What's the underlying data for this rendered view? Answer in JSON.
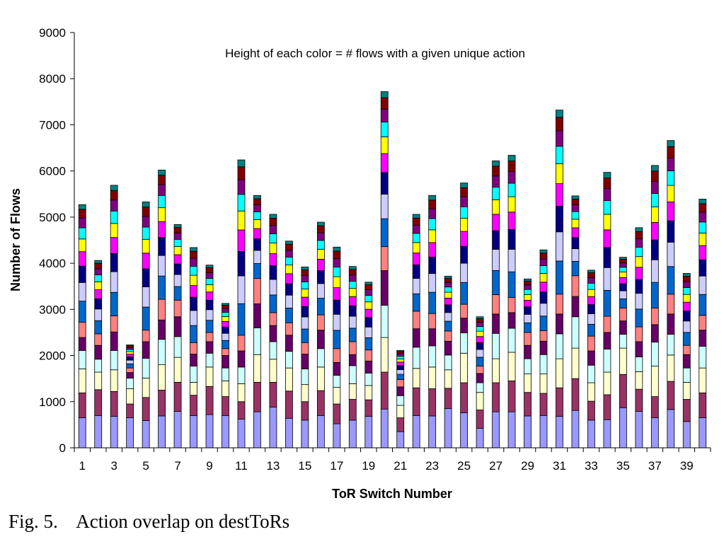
{
  "chart_data": {
    "type": "bar",
    "stacked": true,
    "annotation": "Height of each color = # flows with a given unique action",
    "xlabel": "ToR Switch Number",
    "ylabel": "Number of Flows",
    "ylim": [
      0,
      9000
    ],
    "yticks": [
      0,
      1000,
      2000,
      3000,
      4000,
      5000,
      6000,
      7000,
      8000,
      9000
    ],
    "xtick_labels": [
      "1",
      "3",
      "5",
      "7",
      "9",
      "11",
      "13",
      "15",
      "17",
      "19",
      "21",
      "23",
      "25",
      "27",
      "29",
      "31",
      "33",
      "35",
      "37",
      "39"
    ],
    "categories": [
      1,
      2,
      3,
      4,
      5,
      6,
      7,
      8,
      9,
      10,
      11,
      12,
      13,
      14,
      15,
      16,
      17,
      18,
      19,
      20,
      21,
      22,
      23,
      24,
      25,
      26,
      27,
      28,
      29,
      30,
      31,
      32,
      33,
      34,
      35,
      36,
      37,
      38,
      39,
      40
    ],
    "totals": [
      5270,
      4060,
      5690,
      2230,
      5330,
      6020,
      4840,
      4340,
      3960,
      3130,
      6240,
      5470,
      5060,
      4480,
      3920,
      4890,
      4350,
      3930,
      3590,
      7720,
      2110,
      5060,
      5470,
      3720,
      5740,
      2840,
      6220,
      6340,
      3660,
      4290,
      7320,
      5460,
      3850,
      5970,
      4130,
      4770,
      6120,
      6660,
      3780,
      5390
    ],
    "bottom_segments": [
      [
        650,
        540,
        520,
        400,
        280,
        330
      ],
      [
        700,
        560,
        380,
        280,
        300,
        250
      ],
      [
        680,
        540,
        470,
        420,
        400,
        350
      ],
      [
        650,
        300,
        330,
        230,
        120,
        100
      ],
      [
        590,
        500,
        420,
        430,
        360,
        250
      ],
      [
        690,
        560,
        550,
        550,
        420,
        450
      ],
      [
        790,
        630,
        540,
        450,
        430,
        360
      ],
      [
        700,
        440,
        280,
        350,
        260,
        250
      ],
      [
        720,
        610,
        420,
        300,
        250,
        200
      ],
      [
        700,
        410,
        340,
        280,
        270,
        150
      ],
      [
        620,
        380,
        390,
        360,
        350,
        340
      ],
      [
        780,
        640,
        600,
        580,
        520,
        550
      ],
      [
        880,
        540,
        500,
        380,
        350,
        280
      ],
      [
        640,
        590,
        500,
        360,
        350,
        270
      ],
      [
        600,
        400,
        370,
        340,
        320,
        250
      ],
      [
        700,
        540,
        510,
        400,
        400,
        330
      ],
      [
        520,
        430,
        360,
        260,
        280,
        300
      ],
      [
        600,
        450,
        340,
        390,
        240,
        280
      ],
      [
        680,
        360,
        310,
        270,
        260,
        240
      ],
      [
        840,
        800,
        750,
        700,
        750,
        520
      ],
      [
        350,
        300,
        270,
        210,
        190,
        160
      ],
      [
        700,
        600,
        420,
        460,
        400,
        380
      ],
      [
        690,
        590,
        470,
        460,
        370,
        330
      ],
      [
        850,
        440,
        400,
        320,
        300,
        220
      ],
      [
        760,
        650,
        640,
        440,
        320,
        300
      ],
      [
        420,
        400,
        380,
        210,
        200,
        160
      ],
      [
        780,
        630,
        520,
        550,
        420,
        420
      ],
      [
        780,
        670,
        620,
        520,
        340,
        330
      ],
      [
        690,
        510,
        400,
        330,
        290,
        280
      ],
      [
        700,
        480,
        420,
        420,
        290,
        230
      ],
      [
        680,
        620,
        630,
        540,
        430,
        430
      ],
      [
        810,
        690,
        660,
        680,
        440,
        450
      ],
      [
        600,
        410,
        400,
        380,
        310,
        320
      ],
      [
        610,
        540,
        490,
        500,
        360,
        350
      ],
      [
        870,
        720,
        570,
        300,
        290,
        280
      ],
      [
        790,
        480,
        380,
        320,
        330,
        320
      ],
      [
        650,
        460,
        660,
        520,
        380,
        360
      ],
      [
        830,
        610,
        570,
        450,
        440,
        430
      ],
      [
        570,
        480,
        370,
        310,
        290,
        200
      ],
      [
        650,
        540,
        540,
        470,
        350,
        320
      ]
    ],
    "segment_colors": [
      "#9999ff",
      "#993366",
      "#ffffcc",
      "#ccffff",
      "#660066",
      "#ff8080",
      "#0066cc",
      "#ccccff",
      "#000080",
      "#ff00ff",
      "#ffff00",
      "#00ffff",
      "#800080",
      "#800000",
      "#008080",
      "#0000ff",
      "#00ccff",
      "#ccffcc",
      "#ffff99",
      "#99ccff",
      "#ff99cc",
      "#cc99ff",
      "#ffcc99",
      "#3366ff",
      "#33cccc"
    ],
    "num_series_note": "Each bar is a stack of many series (unique actions); segment values shown for lower segments, remaining height subdivided into progressively thinner colored segments."
  },
  "caption": {
    "label": "Fig. 5.",
    "text": "Action overlap on destToRs"
  }
}
